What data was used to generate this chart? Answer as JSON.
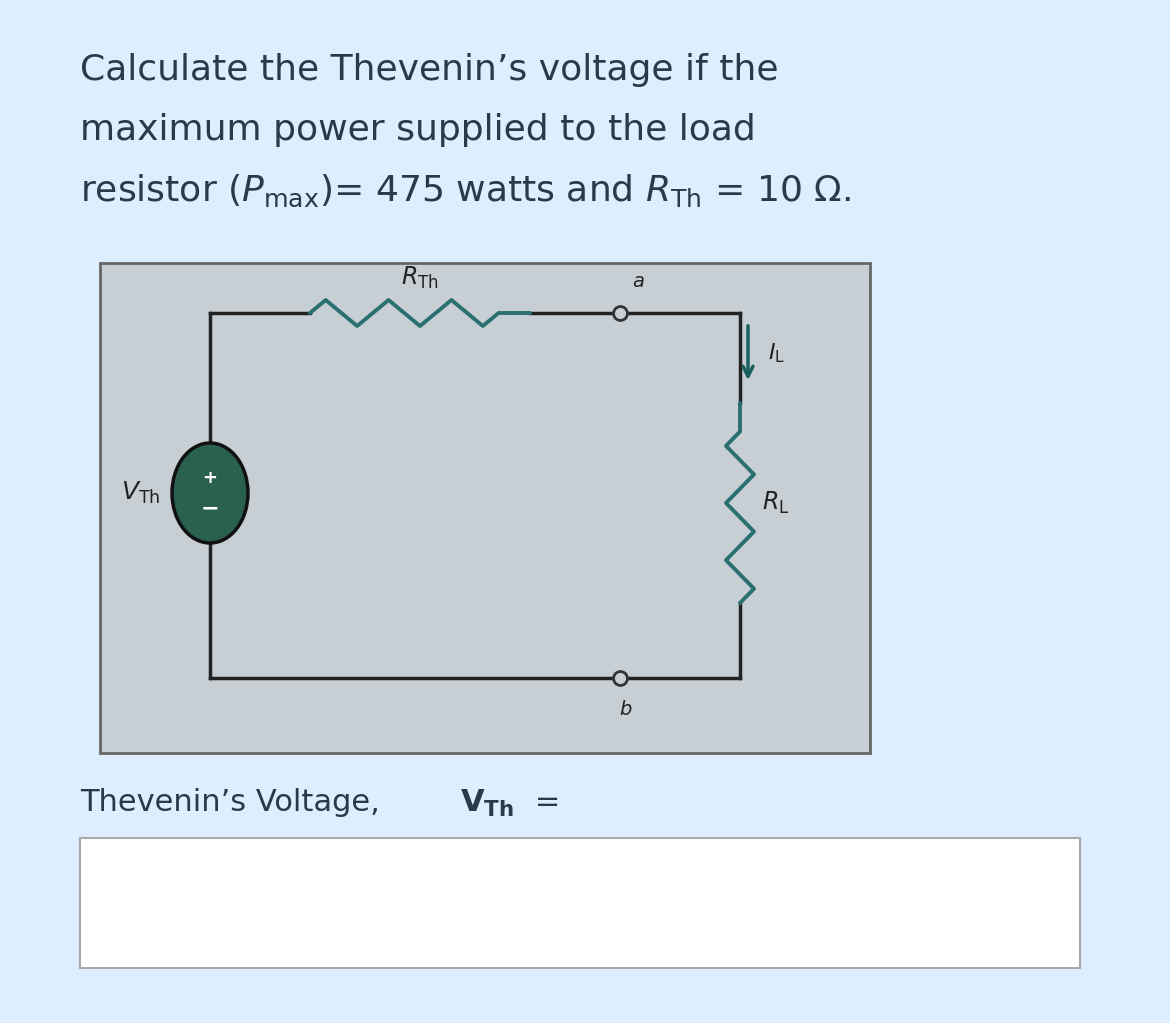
{
  "bg_color": "#ddeeff",
  "panel_bg": "#ddeeff",
  "circuit_bg": "#c8cfd4",
  "white_box_bg": "#ffffff",
  "wire_color": "#222222",
  "resistor_color": "#2a7070",
  "source_color": "#2a6050",
  "arrow_color": "#1a6060",
  "title_color": "#2a3a4a",
  "answer_color": "#2a3a4a",
  "border_color": "#aaaaaa",
  "title1": "Calculate the Thevenin’s voltage if the",
  "title2": "maximum power supplied to the load",
  "title3": "resistor (P",
  "title3b": "max",
  "title3c": ")= 475 watts and R",
  "title3d": "Th",
  "title3e": " = 10 Ω.",
  "ans1": "Thevenin’s Voltage, ",
  "ans2": "V",
  "ans3": "Th",
  "ans4": " =",
  "title_fs": 26,
  "ans_fs": 22,
  "circuit_fs": 15
}
